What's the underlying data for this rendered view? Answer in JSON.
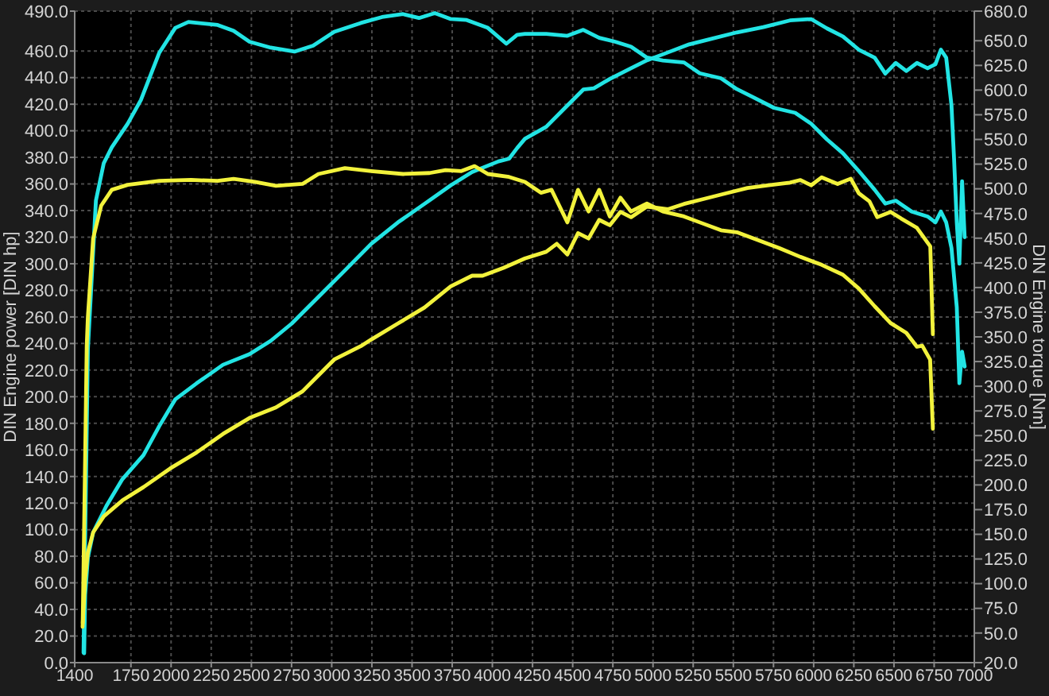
{
  "chart_data": {
    "type": "line",
    "ylabel": "DIN Engine power [DIN hp]",
    "y2label": "DIN Engine torque [Nm]",
    "xlim": [
      1400,
      7000
    ],
    "xticks": [
      1400,
      1750,
      2000,
      2250,
      2500,
      2750,
      3000,
      3250,
      3500,
      3750,
      4000,
      4250,
      4500,
      4750,
      5000,
      5250,
      5500,
      5750,
      6000,
      6250,
      6500,
      6750,
      7000
    ],
    "ylim": [
      0,
      490
    ],
    "yticks": [
      {
        "value": 0,
        "label": "0.0"
      },
      {
        "value": 20,
        "label": "20.0"
      },
      {
        "value": 40,
        "label": "40.0"
      },
      {
        "value": 60,
        "label": "60.0"
      },
      {
        "value": 80,
        "label": "80.0"
      },
      {
        "value": 100,
        "label": "100.0"
      },
      {
        "value": 120,
        "label": "120.0"
      },
      {
        "value": 140,
        "label": "140.0"
      },
      {
        "value": 160,
        "label": "160.0"
      },
      {
        "value": 180,
        "label": "180.0"
      },
      {
        "value": 200,
        "label": "200.0"
      },
      {
        "value": 220,
        "label": "220.0"
      },
      {
        "value": 240,
        "label": "240.0"
      },
      {
        "value": 260,
        "label": "260.0"
      },
      {
        "value": 280,
        "label": "280.0"
      },
      {
        "value": 300,
        "label": "300.0"
      },
      {
        "value": 320,
        "label": "320.0"
      },
      {
        "value": 340,
        "label": "340.0"
      },
      {
        "value": 360,
        "label": "360.0"
      },
      {
        "value": 380,
        "label": "380.0"
      },
      {
        "value": 400,
        "label": "400.0"
      },
      {
        "value": 420,
        "label": "420.0"
      },
      {
        "value": 440,
        "label": "440.0"
      },
      {
        "value": 460,
        "label": "460.0"
      },
      {
        "value": 490,
        "label": "490.0"
      }
    ],
    "y2lim": [
      20,
      680
    ],
    "y2ticks": [
      {
        "value": 20,
        "label": "20.0"
      },
      {
        "value": 50,
        "label": "50.0"
      },
      {
        "value": 75,
        "label": "75.0"
      },
      {
        "value": 100,
        "label": "100.0"
      },
      {
        "value": 125,
        "label": "125.0"
      },
      {
        "value": 150,
        "label": "150.0"
      },
      {
        "value": 175,
        "label": "175.0"
      },
      {
        "value": 200,
        "label": "200.0"
      },
      {
        "value": 225,
        "label": "225.0"
      },
      {
        "value": 250,
        "label": "250.0"
      },
      {
        "value": 275,
        "label": "275.0"
      },
      {
        "value": 300,
        "label": "300.0"
      },
      {
        "value": 325,
        "label": "325.0"
      },
      {
        "value": 350,
        "label": "350.0"
      },
      {
        "value": 375,
        "label": "375.0"
      },
      {
        "value": 400,
        "label": "400.0"
      },
      {
        "value": 425,
        "label": "425.0"
      },
      {
        "value": 450,
        "label": "450.0"
      },
      {
        "value": 475,
        "label": "475.0"
      },
      {
        "value": 500,
        "label": "500.0"
      },
      {
        "value": 525,
        "label": "525.0"
      },
      {
        "value": 550,
        "label": "550.0"
      },
      {
        "value": 575,
        "label": "575.0"
      },
      {
        "value": 600,
        "label": "600.0"
      },
      {
        "value": 625,
        "label": "625.0"
      },
      {
        "value": 650,
        "label": "650.0"
      },
      {
        "value": 680,
        "label": "680.0"
      }
    ],
    "grid": true,
    "series": [
      {
        "color": "#22e4e4",
        "x": [
          1459,
          1465,
          1482,
          1515,
          1598,
          1697,
          1828,
          1927,
          2026,
          2158,
          2323,
          2488,
          2620,
          2751,
          2917,
          3082,
          3246,
          3411,
          3577,
          3741,
          3874,
          4038,
          4104,
          4154,
          4203,
          4335,
          4467,
          4566,
          4632,
          4731,
          4863,
          4962,
          5094,
          5225,
          5358,
          5522,
          5687,
          5852,
          5984,
          6083,
          6182,
          6281,
          6380,
          6446,
          6511,
          6577,
          6643,
          6709,
          6758,
          6792,
          6825,
          6858,
          6874,
          6891,
          6907,
          6924,
          6940
        ],
        "values": [
          7,
          51,
          79,
          98,
          118,
          138,
          156,
          178,
          198,
          210,
          224,
          232,
          242,
          255,
          275,
          295,
          315,
          331,
          345,
          359,
          369,
          377,
          379,
          387,
          394,
          403,
          419,
          431,
          432,
          439,
          447,
          453,
          459,
          465,
          469,
          474,
          478,
          483,
          484,
          477,
          471,
          461,
          455,
          443,
          451,
          445,
          451,
          447,
          450,
          461,
          455,
          419,
          379,
          331,
          300,
          362,
          320
        ]
      },
      {
        "color": "#22e4e4",
        "axis": "y2",
        "x": [
          1455,
          1468,
          1482,
          1532,
          1581,
          1631,
          1730,
          1812,
          1927,
          2026,
          2108,
          2290,
          2389,
          2488,
          2620,
          2768,
          2884,
          3016,
          3181,
          3313,
          3444,
          3543,
          3642,
          3741,
          3840,
          3972,
          4087,
          4154,
          4203,
          4335,
          4467,
          4566,
          4665,
          4764,
          4863,
          4962,
          5061,
          5193,
          5291,
          5423,
          5522,
          5621,
          5753,
          5885,
          5984,
          6083,
          6182,
          6281,
          6380,
          6446,
          6511,
          6610,
          6709,
          6758,
          6792,
          6825,
          6858,
          6891,
          6907,
          6924,
          6940
        ],
        "values": [
          30,
          180,
          337,
          488,
          526,
          542,
          566,
          590,
          638,
          663,
          669,
          666,
          660,
          649,
          643,
          639,
          645,
          659,
          668,
          674,
          677,
          673,
          678,
          672,
          671,
          663,
          647,
          656,
          657,
          657,
          655,
          661,
          653,
          649,
          644,
          633,
          630,
          628,
          617,
          612,
          601,
          593,
          582,
          577,
          566,
          550,
          536,
          518,
          499,
          485,
          488,
          477,
          472,
          466,
          477,
          466,
          440,
          380,
          303,
          335,
          320
        ]
      },
      {
        "color": "#f2f23c",
        "x": [
          1449,
          1465,
          1482,
          1515,
          1581,
          1697,
          1828,
          1994,
          2158,
          2323,
          2488,
          2653,
          2818,
          2917,
          3016,
          3181,
          3246,
          3411,
          3577,
          3741,
          3874,
          3939,
          4071,
          4203,
          4335,
          4401,
          4467,
          4533,
          4599,
          4665,
          4731,
          4797,
          4863,
          4962,
          5094,
          5193,
          5324,
          5456,
          5588,
          5720,
          5852,
          5918,
          5984,
          6050,
          6149,
          6231,
          6281,
          6347,
          6396,
          6479,
          6545,
          6643,
          6726,
          6742
        ],
        "values": [
          27,
          63,
          83,
          98,
          110,
          122,
          132,
          146,
          158,
          172,
          184,
          192,
          204,
          216,
          228,
          238,
          243,
          255,
          267,
          283,
          291,
          291,
          297,
          304,
          309,
          315,
          307,
          323,
          319,
          333,
          329,
          339,
          335,
          343,
          341,
          345,
          349,
          353,
          357,
          359,
          361,
          363,
          359,
          365,
          360,
          364,
          353,
          347,
          335,
          339,
          334,
          327,
          313,
          247
        ]
      },
      {
        "color": "#f2f23c",
        "axis": "y2",
        "x": [
          1450,
          1475,
          1482,
          1515,
          1565,
          1631,
          1730,
          1927,
          2125,
          2290,
          2389,
          2521,
          2653,
          2818,
          2917,
          3082,
          3246,
          3444,
          3609,
          3708,
          3807,
          3889,
          3972,
          4104,
          4203,
          4302,
          4368,
          4467,
          4533,
          4599,
          4665,
          4731,
          4797,
          4863,
          4962,
          5061,
          5193,
          5291,
          5423,
          5522,
          5654,
          5786,
          5918,
          6050,
          6182,
          6281,
          6380,
          6479,
          6577,
          6643,
          6676,
          6725,
          6742
        ],
        "values": [
          60,
          341,
          370,
          450,
          483,
          499,
          504,
          508,
          509,
          508,
          510,
          507,
          503,
          505,
          515,
          521,
          518,
          515,
          516,
          519,
          518,
          523,
          515,
          512,
          507,
          496,
          499,
          466,
          499,
          477,
          499,
          472,
          491,
          477,
          485,
          477,
          472,
          466,
          458,
          456,
          448,
          440,
          431,
          423,
          413,
          399,
          381,
          364,
          354,
          340,
          341,
          327,
          257
        ]
      }
    ]
  }
}
